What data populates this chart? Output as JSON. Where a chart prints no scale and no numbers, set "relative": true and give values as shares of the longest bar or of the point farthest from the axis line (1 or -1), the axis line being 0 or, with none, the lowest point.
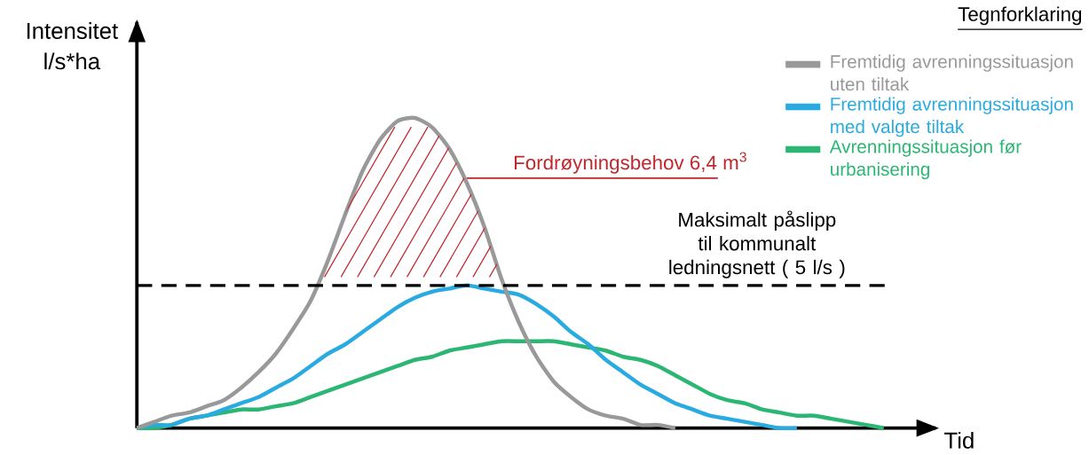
{
  "chart_data": {
    "type": "line",
    "relative": true,
    "xlabel": "Tid",
    "ylabel": "Intensitet l/s*ha",
    "legend_title": "Tegnforklaring",
    "legend": "top right",
    "categories": [
      null,
      null,
      null,
      null,
      null,
      null,
      null,
      null,
      null,
      null,
      null,
      null,
      null,
      null,
      null,
      null,
      null,
      null,
      null,
      null,
      null,
      null,
      null,
      null,
      null,
      null,
      null,
      null,
      null,
      null,
      null,
      null,
      null,
      null,
      null,
      null,
      null,
      null,
      null,
      null,
      null,
      null,
      null,
      null,
      null,
      null,
      null
    ],
    "series": [
      {
        "name": "Fremtidig avrenningssituasjon uten tiltak",
        "color": "#999999",
        "values": [
          0,
          0.02,
          0.04,
          0.05,
          0.07,
          0.09,
          0.13,
          0.18,
          0.24,
          0.32,
          0.41,
          0.54,
          0.69,
          0.83,
          0.93,
          0.99,
          1,
          0.97,
          0.9,
          0.79,
          0.65,
          0.48,
          0.34,
          0.23,
          0.15,
          0.1,
          0.06,
          0.04,
          0.03,
          0.01,
          0.01,
          0,
          null,
          null,
          null,
          null,
          null,
          null,
          null,
          null,
          null,
          null,
          null,
          null,
          null,
          null,
          null
        ]
      },
      {
        "name": "Fremtidig avrenningssituasjon med valgte tiltak",
        "color": "#29abe2",
        "values": [
          0,
          0.01,
          0.01,
          0.03,
          0.04,
          0.06,
          0.08,
          0.1,
          0.13,
          0.16,
          0.2,
          0.24,
          0.27,
          0.31,
          0.35,
          0.39,
          0.42,
          0.44,
          0.45,
          0.46,
          0.45,
          0.44,
          0.43,
          0.4,
          0.36,
          0.31,
          0.27,
          0.22,
          0.18,
          0.14,
          0.11,
          0.08,
          0.06,
          0.04,
          0.03,
          0.02,
          0.01,
          0,
          0,
          null,
          null,
          null,
          null,
          null,
          null,
          null,
          null
        ]
      },
      {
        "name": "Avrenningssituasjon før urbanisering",
        "color": "#2bb673",
        "values": [
          0,
          0,
          0.01,
          0.03,
          0.04,
          0.05,
          0.06,
          0.06,
          0.07,
          0.08,
          0.1,
          0.12,
          0.14,
          0.16,
          0.18,
          0.2,
          0.22,
          0.23,
          0.25,
          0.26,
          0.27,
          0.28,
          0.28,
          0.28,
          0.28,
          0.27,
          0.26,
          0.25,
          0.23,
          0.22,
          0.2,
          0.17,
          0.14,
          0.11,
          0.09,
          0.08,
          0.06,
          0.05,
          0.04,
          0.04,
          0.03,
          0.02,
          0.01,
          0,
          null,
          null,
          null
        ]
      }
    ],
    "ref_lines": [
      {
        "axis": "y",
        "value": 0.46,
        "label": "Maksimalt påslipp til kommunalt ledningsnett ( 5 l/s )",
        "color": "#000000",
        "line_style": "dashed"
      }
    ],
    "annotations": [
      "Fordrøyningsbehov 6,4 m$^{3}$"
    ]
  }
}
